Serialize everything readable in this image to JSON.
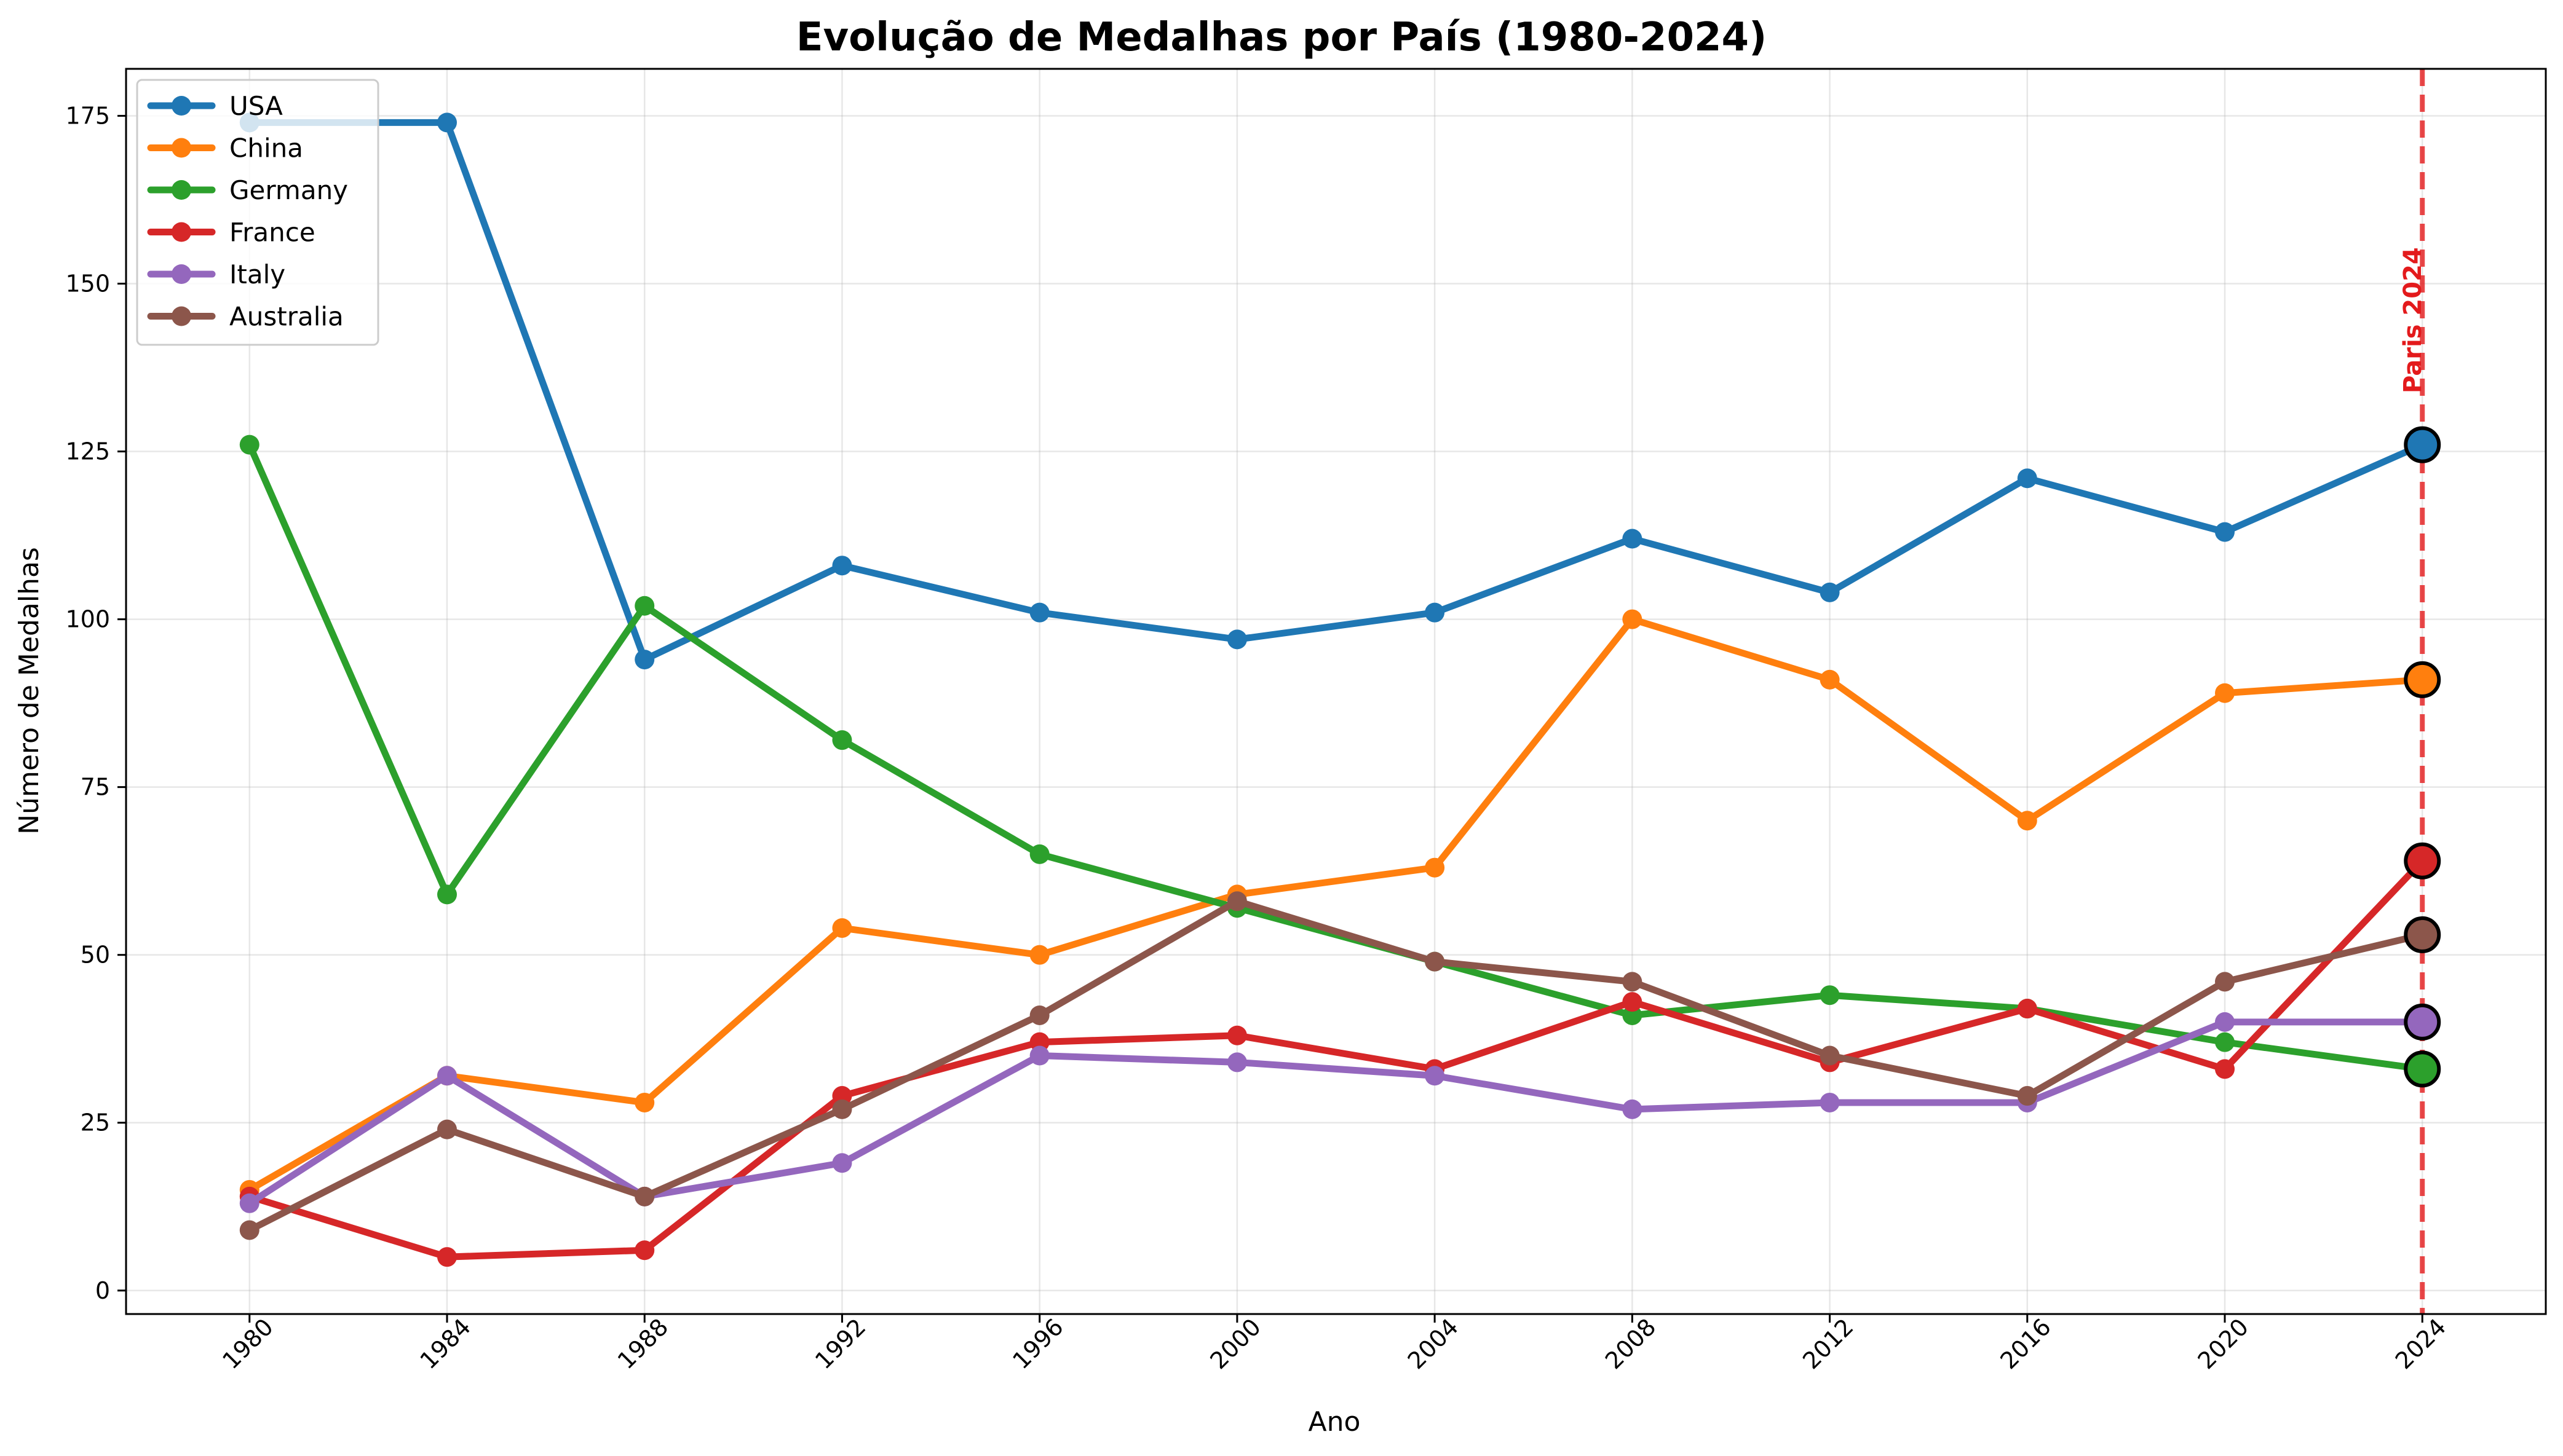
{
  "chart_data": {
    "type": "line",
    "title": "Evolução de Medalhas por País (1980-2024)",
    "xlabel": "Ano",
    "ylabel": "Número de Medalhas",
    "x": [
      1980,
      1984,
      1988,
      1992,
      1996,
      2000,
      2004,
      2008,
      2012,
      2016,
      2020,
      2024
    ],
    "x_tick_labels": [
      "1980",
      "1984",
      "1988",
      "1992",
      "1996",
      "2000",
      "2004",
      "2008",
      "2012",
      "2016",
      "2020",
      "2024"
    ],
    "y_ticks": [
      0,
      25,
      50,
      75,
      100,
      125,
      150,
      175
    ],
    "y_tick_labels": [
      "0",
      "25",
      "50",
      "75",
      "100",
      "125",
      "150",
      "175"
    ],
    "xlim": [
      1977.5,
      2026.5
    ],
    "ylim": [
      -3.5,
      182
    ],
    "grid": true,
    "legend_position": "top-left",
    "series": [
      {
        "name": "USA",
        "color": "#1f77b4",
        "values": [
          174,
          174,
          94,
          108,
          101,
          97,
          101,
          112,
          104,
          121,
          113,
          126
        ]
      },
      {
        "name": "China",
        "color": "#ff7f0e",
        "values": [
          15,
          32,
          28,
          54,
          50,
          59,
          63,
          100,
          91,
          70,
          89,
          91
        ]
      },
      {
        "name": "Germany",
        "color": "#2ca02c",
        "values": [
          126,
          59,
          102,
          82,
          65,
          57,
          49,
          41,
          44,
          42,
          37,
          33
        ]
      },
      {
        "name": "France",
        "color": "#d62728",
        "values": [
          14,
          5,
          6,
          29,
          37,
          38,
          33,
          43,
          34,
          42,
          33,
          64
        ]
      },
      {
        "name": "Italy",
        "color": "#9467bd",
        "values": [
          13,
          32,
          14,
          19,
          35,
          34,
          32,
          27,
          28,
          28,
          40,
          40
        ]
      },
      {
        "name": "Australia",
        "color": "#8c564b",
        "values": [
          9,
          24,
          14,
          27,
          41,
          58,
          49,
          46,
          35,
          29,
          46,
          53
        ]
      }
    ],
    "highlight": {
      "x": 2024,
      "line_color": "#e31a1c",
      "line_style": "dashed"
    },
    "annotations": [
      {
        "text": "Paris 2024",
        "x": 2024,
        "color": "#e31a1c"
      }
    ]
  }
}
